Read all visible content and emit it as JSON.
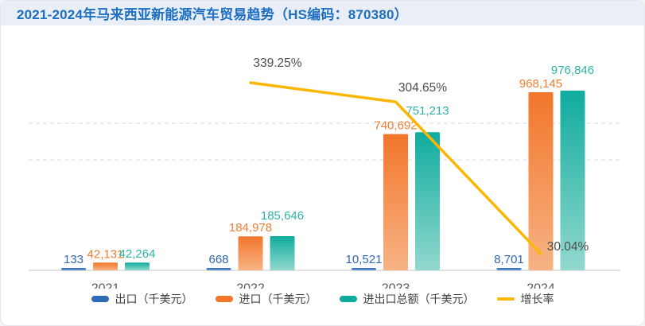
{
  "header": {
    "title": "2021-2024年马来西亚新能源汽车贸易趋势（HS编码：870380）"
  },
  "chart_data": {
    "type": "bar",
    "title": "2021-2024年马来西亚新能源汽车贸易趋势（HS编码：870380）",
    "categories": [
      "2021",
      "2022",
      "2023",
      "2024"
    ],
    "series": [
      {
        "name": "出口（千美元）",
        "values": [
          133,
          668,
          10521,
          8701
        ],
        "labels": [
          "133",
          "668",
          "10,521",
          "8,701"
        ],
        "color": "#2F6BB7",
        "label_color": "#3168B1"
      },
      {
        "name": "进口（千美元）",
        "values": [
          42131,
          184978,
          740692,
          968145
        ],
        "labels": [
          "42,131",
          "184,978",
          "740,692",
          "968,145"
        ],
        "color": "#F2762A",
        "color_bottom": "#F7B385",
        "label_color": "#F07D33"
      },
      {
        "name": "进出口总额（千美元）",
        "values": [
          42264,
          185646,
          751213,
          976846
        ],
        "labels": [
          "42,264",
          "185,646",
          "751,213",
          "976,846"
        ],
        "color": "#0FAC9E",
        "color_bottom": "#92D8CE",
        "label_color": "#2FB3A6"
      }
    ],
    "line_series": {
      "name": "增长率",
      "values": [
        null,
        339.25,
        304.65,
        30.04
      ],
      "labels": [
        null,
        "339.25%",
        "304.65%",
        "30.04%"
      ],
      "color": "#FBB603",
      "label_color": "#4D4D4D"
    },
    "xlabel": "",
    "ylabel": "",
    "ylim": [
      0,
      1060000
    ],
    "right_axis_unit": "%",
    "gridlines": {
      "style": "dashed",
      "values": [
        600000,
        800000
      ]
    },
    "axes_labels_visible": false,
    "legend_position": "bottom"
  }
}
